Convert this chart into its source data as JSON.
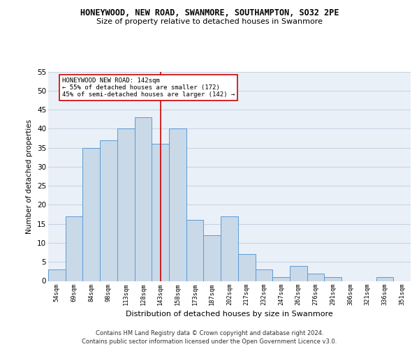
{
  "title": "HONEYWOOD, NEW ROAD, SWANMORE, SOUTHAMPTON, SO32 2PE",
  "subtitle": "Size of property relative to detached houses in Swanmore",
  "xlabel": "Distribution of detached houses by size in Swanmore",
  "ylabel": "Number of detached properties",
  "categories": [
    "54sqm",
    "69sqm",
    "84sqm",
    "98sqm",
    "113sqm",
    "128sqm",
    "143sqm",
    "158sqm",
    "173sqm",
    "187sqm",
    "202sqm",
    "217sqm",
    "232sqm",
    "247sqm",
    "262sqm",
    "276sqm",
    "291sqm",
    "306sqm",
    "321sqm",
    "336sqm",
    "351sqm"
  ],
  "values": [
    3,
    17,
    35,
    37,
    40,
    43,
    36,
    40,
    16,
    12,
    17,
    7,
    3,
    1,
    4,
    2,
    1,
    0,
    0,
    1,
    0
  ],
  "bar_color": "#c9d9e8",
  "bar_edge_color": "#5b9bd5",
  "ylim": [
    0,
    55
  ],
  "yticks": [
    0,
    5,
    10,
    15,
    20,
    25,
    30,
    35,
    40,
    45,
    50,
    55
  ],
  "marker_label_line1": "HONEYWOOD NEW ROAD: 142sqm",
  "marker_label_line2": "← 55% of detached houses are smaller (172)",
  "marker_label_line3": "45% of semi-detached houses are larger (142) →",
  "annotation_box_color": "#ffffff",
  "annotation_box_edge": "#cc0000",
  "marker_line_color": "#cc0000",
  "grid_color": "#c8d4e3",
  "background_color": "#eaf0f8",
  "footer_line1": "Contains HM Land Registry data © Crown copyright and database right 2024.",
  "footer_line2": "Contains public sector information licensed under the Open Government Licence v3.0."
}
